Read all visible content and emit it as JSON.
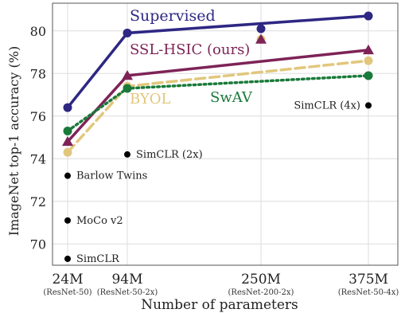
{
  "chart_data": {
    "type": "line",
    "title": "",
    "xlabel": "Number of parameters",
    "ylabel": "ImageNet top-1 accuracy (%)",
    "x_positions": [
      24,
      94,
      250,
      375
    ],
    "x_ticks": [
      {
        "x": 24,
        "label": "24M",
        "sublabel": "(ResNet-50)"
      },
      {
        "x": 94,
        "label": "94M",
        "sublabel": "(ResNet-50-2x)"
      },
      {
        "x": 250,
        "label": "250M",
        "sublabel": "(ResNet-200-2x)"
      },
      {
        "x": 375,
        "label": "375M",
        "sublabel": "(ResNet-50-4x)"
      }
    ],
    "xlim": [
      10,
      390
    ],
    "ylim": [
      69,
      81.3
    ],
    "y_ticks": [
      70,
      72,
      74,
      76,
      78,
      80
    ],
    "grid": true,
    "series": [
      {
        "name": "Supervised",
        "color": "#2e2783",
        "style": "solid",
        "marker": "circle",
        "x": [
          24,
          94,
          375
        ],
        "y": [
          76.4,
          79.9,
          80.7
        ]
      },
      {
        "name": "SSL-HSIC (ours)",
        "color": "#7e2357",
        "style": "solid",
        "marker": "triangle",
        "x": [
          24,
          94,
          375
        ],
        "y": [
          74.8,
          77.9,
          79.1
        ]
      },
      {
        "name": "BYOL",
        "color": "#e1c77d",
        "style": "dashed",
        "marker": "circle",
        "x": [
          24,
          94,
          375
        ],
        "y": [
          74.3,
          77.4,
          78.6
        ]
      },
      {
        "name": "SwAV",
        "color": "#1a7a3a",
        "style": "dotted",
        "marker": "circle",
        "x": [
          24,
          94,
          375
        ],
        "y": [
          75.3,
          77.3,
          77.9
        ]
      }
    ],
    "isolated_points": [
      {
        "x": 250,
        "y": 80.1,
        "color": "#2e2783",
        "marker": "circle"
      },
      {
        "x": 250,
        "y": 79.6,
        "color": "#e1c77d",
        "marker": "circle"
      },
      {
        "x": 250,
        "y": 79.6,
        "color": "#7e2357",
        "marker": "triangle"
      }
    ],
    "annotated_points": [
      {
        "label": "SimCLR (4x)",
        "x": 375,
        "y": 76.5
      },
      {
        "label": "SimCLR (2x)",
        "x": 94,
        "y": 74.2
      },
      {
        "label": "Barlow Twins",
        "x": 24,
        "y": 73.2
      },
      {
        "label": "MoCo v2",
        "x": 24,
        "y": 71.1
      },
      {
        "label": "SimCLR",
        "x": 24,
        "y": 69.3
      }
    ]
  }
}
